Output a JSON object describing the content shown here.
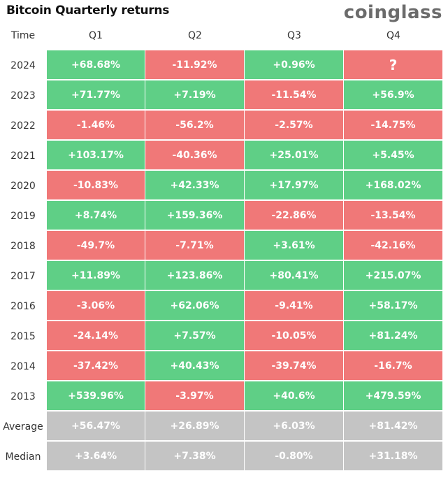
{
  "title": "Bitcoin Quarterly returns",
  "logo": "coinglass",
  "colors": {
    "positive": "#5fcf86",
    "negative": "#f07878",
    "summary": "#c4c4c4"
  },
  "chart_data": {
    "type": "table",
    "title": "Bitcoin Quarterly returns",
    "row_header_label": "Time",
    "columns": [
      "Q1",
      "Q2",
      "Q3",
      "Q4"
    ],
    "rows": [
      {
        "label": "2024",
        "values": [
          "+68.68%",
          "-11.92%",
          "+0.96%",
          "?"
        ],
        "status": [
          "pos",
          "neg",
          "pos",
          "neg"
        ]
      },
      {
        "label": "2023",
        "values": [
          "+71.77%",
          "+7.19%",
          "-11.54%",
          "+56.9%"
        ],
        "status": [
          "pos",
          "pos",
          "neg",
          "pos"
        ]
      },
      {
        "label": "2022",
        "values": [
          "-1.46%",
          "-56.2%",
          "-2.57%",
          "-14.75%"
        ],
        "status": [
          "neg",
          "neg",
          "neg",
          "neg"
        ]
      },
      {
        "label": "2021",
        "values": [
          "+103.17%",
          "-40.36%",
          "+25.01%",
          "+5.45%"
        ],
        "status": [
          "pos",
          "neg",
          "pos",
          "pos"
        ]
      },
      {
        "label": "2020",
        "values": [
          "-10.83%",
          "+42.33%",
          "+17.97%",
          "+168.02%"
        ],
        "status": [
          "neg",
          "pos",
          "pos",
          "pos"
        ]
      },
      {
        "label": "2019",
        "values": [
          "+8.74%",
          "+159.36%",
          "-22.86%",
          "-13.54%"
        ],
        "status": [
          "pos",
          "pos",
          "neg",
          "neg"
        ]
      },
      {
        "label": "2018",
        "values": [
          "-49.7%",
          "-7.71%",
          "+3.61%",
          "-42.16%"
        ],
        "status": [
          "neg",
          "neg",
          "pos",
          "neg"
        ]
      },
      {
        "label": "2017",
        "values": [
          "+11.89%",
          "+123.86%",
          "+80.41%",
          "+215.07%"
        ],
        "status": [
          "pos",
          "pos",
          "pos",
          "pos"
        ]
      },
      {
        "label": "2016",
        "values": [
          "-3.06%",
          "+62.06%",
          "-9.41%",
          "+58.17%"
        ],
        "status": [
          "neg",
          "pos",
          "neg",
          "pos"
        ]
      },
      {
        "label": "2015",
        "values": [
          "-24.14%",
          "+7.57%",
          "-10.05%",
          "+81.24%"
        ],
        "status": [
          "neg",
          "pos",
          "neg",
          "pos"
        ]
      },
      {
        "label": "2014",
        "values": [
          "-37.42%",
          "+40.43%",
          "-39.74%",
          "-16.7%"
        ],
        "status": [
          "neg",
          "pos",
          "neg",
          "neg"
        ]
      },
      {
        "label": "2013",
        "values": [
          "+539.96%",
          "-3.97%",
          "+40.6%",
          "+479.59%"
        ],
        "status": [
          "pos",
          "neg",
          "pos",
          "pos"
        ]
      },
      {
        "label": "Average",
        "values": [
          "+56.47%",
          "+26.89%",
          "+6.03%",
          "+81.42%"
        ],
        "status": [
          "sum",
          "sum",
          "sum",
          "sum"
        ]
      },
      {
        "label": "Median",
        "values": [
          "+3.64%",
          "+7.38%",
          "-0.80%",
          "+31.18%"
        ],
        "status": [
          "sum",
          "sum",
          "sum",
          "sum"
        ]
      }
    ]
  }
}
